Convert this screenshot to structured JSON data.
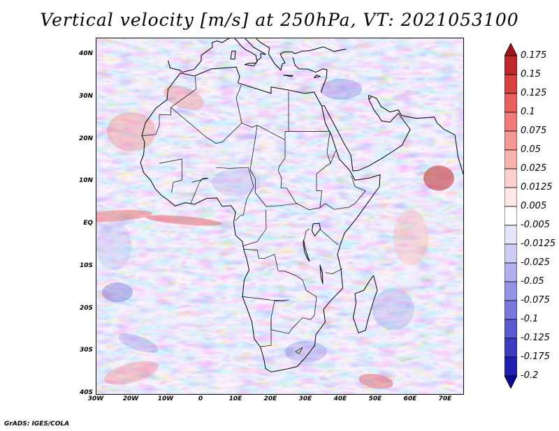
{
  "title": "Vertical velocity [m/s] at 250hPa, VT: 2021053100",
  "footer": "GrADS: IGES/COLA",
  "map": {
    "lat_labels": [
      "40N",
      "30N",
      "20N",
      "10N",
      "EQ",
      "10S",
      "20S",
      "30S",
      "40S"
    ],
    "lon_labels": [
      "30W",
      "20W",
      "10W",
      "0",
      "10E",
      "20E",
      "30E",
      "40E",
      "50E",
      "60E",
      "70E"
    ],
    "lat_range": [
      -40,
      44
    ],
    "lon_range": [
      -30,
      75
    ],
    "variable": "vertical velocity",
    "units": "m/s",
    "level": "250hPa"
  },
  "colorbar": {
    "levels": [
      "0.175",
      "0.15",
      "0.125",
      "0.1",
      "0.075",
      "0.05",
      "0.025",
      "0.0125",
      "0.005",
      "-0.005",
      "-0.0125",
      "-0.025",
      "-0.05",
      "-0.075",
      "-0.1",
      "-0.125",
      "-0.175",
      "-0.2"
    ],
    "colors": [
      "#a0141e",
      "#c0282c",
      "#d84240",
      "#e86060",
      "#f07c78",
      "#f59894",
      "#f9b4b0",
      "#fcd0cc",
      "#fee8e6",
      "#ffffff",
      "#e6e6fa",
      "#ccccf5",
      "#b0b0ee",
      "#9494e6",
      "#7878dc",
      "#5a5ad0",
      "#3c3cc2",
      "#2020b0",
      "#0a0a96"
    ]
  }
}
